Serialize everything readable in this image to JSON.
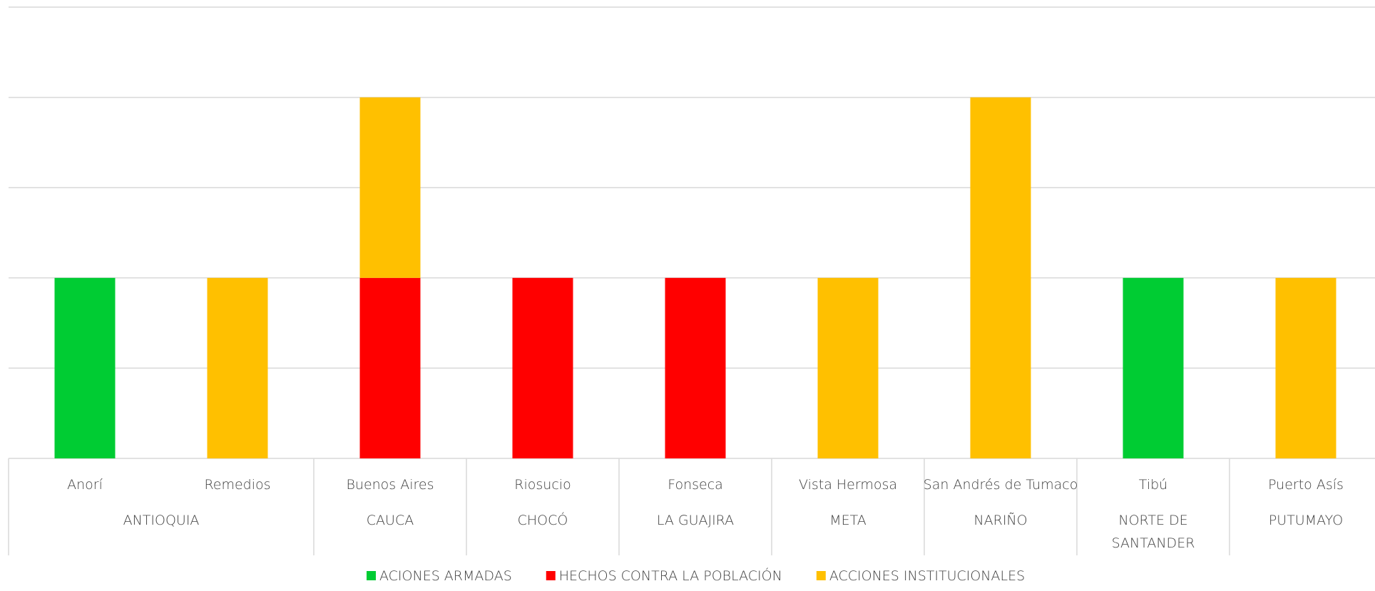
{
  "chart_data": {
    "type": "bar",
    "stacked": true,
    "title": "",
    "xlabel": "",
    "ylabel": "",
    "ylim": [
      0,
      5
    ],
    "grid": true,
    "legend_position": "bottom",
    "groups": [
      {
        "label": "ANTIOQUIA",
        "categories": [
          "Anorí",
          "Remedios"
        ]
      },
      {
        "label": "CAUCA",
        "categories": [
          "Buenos Aires"
        ]
      },
      {
        "label": "CHOCÓ",
        "categories": [
          "Riosucio"
        ]
      },
      {
        "label": "LA GUAJIRA",
        "categories": [
          "Fonseca"
        ]
      },
      {
        "label": "META",
        "categories": [
          "Vista Hermosa"
        ]
      },
      {
        "label": "NARIÑO",
        "categories": [
          "San Andrés de Tumaco"
        ]
      },
      {
        "label": "NORTE DE SANTANDER",
        "categories": [
          "Tibú"
        ]
      },
      {
        "label": "PUTUMAYO",
        "categories": [
          "Puerto Asís"
        ]
      }
    ],
    "categories": [
      "Anorí",
      "Remedios",
      "Buenos Aires",
      "Riosucio",
      "Fonseca",
      "Vista Hermosa",
      "San Andrés de Tumaco",
      "Tibú",
      "Puerto Asís"
    ],
    "series": [
      {
        "name": "ACIONES ARMADAS",
        "color": "#00CC33",
        "values": [
          2,
          0,
          0,
          0,
          0,
          0,
          0,
          2,
          0
        ]
      },
      {
        "name": "HECHOS CONTRA LA POBLACIÓN",
        "color": "#FF0000",
        "values": [
          0,
          0,
          2,
          2,
          2,
          0,
          0,
          0,
          0
        ]
      },
      {
        "name": "ACCIONES INSTITUCIONALES",
        "color": "#FFC000",
        "values": [
          0,
          2,
          2,
          0,
          0,
          2,
          4,
          0,
          2
        ]
      }
    ]
  }
}
